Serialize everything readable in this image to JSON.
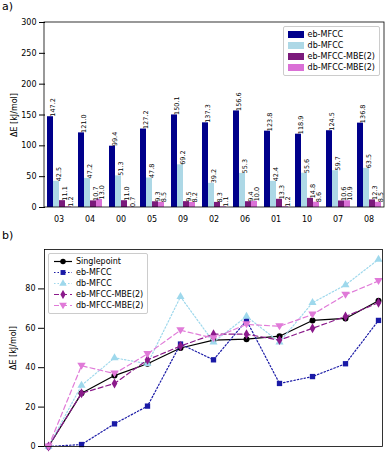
{
  "chart_data": [
    {
      "type": "bar",
      "title": "a)",
      "categories": [
        "03",
        "04",
        "00",
        "05",
        "09",
        "02",
        "06",
        "01",
        "10",
        "07",
        "08"
      ],
      "y_label": "ΔE [kJ/mol]",
      "ylim": [
        0,
        300
      ],
      "yticks": [
        0,
        50,
        100,
        150,
        200,
        250,
        300
      ],
      "data_labels": true,
      "legend": "top-right",
      "series": [
        {
          "name": "eb-MFCC",
          "color": "#00008b",
          "values": [
            147.2,
            121.0,
            99.4,
            127.2,
            150.1,
            137.3,
            156.6,
            123.8,
            118.9,
            124.5,
            136.8
          ],
          "value_labels": [
            "147.2",
            "121.0",
            "99.4",
            "127.2",
            "150.1",
            "137.3",
            "156.6",
            "123.8",
            "118.9",
            "124.5",
            "136.8"
          ]
        },
        {
          "name": "db-MFCC",
          "color": "#add8e6",
          "values": [
            42.5,
            47.2,
            51.3,
            47.8,
            69.2,
            39.2,
            55.3,
            42.4,
            55.6,
            59.7,
            63.5
          ],
          "value_labels": [
            "42.5",
            "47.2",
            "51.3",
            "47.8",
            "69.2",
            "39.2",
            "55.3",
            "42.4",
            "55.6",
            "59.7",
            "63.5"
          ]
        },
        {
          "name": "eb-MFCC-MBE(2)",
          "color": "#7b1a7b",
          "values": [
            11.1,
            10.7,
            11.0,
            9.3,
            9.5,
            8.3,
            9.4,
            13.3,
            14.8,
            10.6,
            12.3
          ],
          "value_labels": [
            "11.1",
            "10.7",
            "11.0",
            "9.3",
            "9.5",
            "8.3",
            "9.4",
            "13.3",
            "14.8",
            "10.6",
            "12.3"
          ]
        },
        {
          "name": "db-MFCC-MBE(2)",
          "color": "#da70d6",
          "values": [
            1.2,
            13.0,
            0.7,
            8.5,
            8.2,
            1.1,
            10.0,
            1.2,
            8.6,
            10.9,
            8.5
          ],
          "value_labels": [
            "1.2",
            "13.0",
            "0.7",
            "8.5",
            "8.2",
            "1.1",
            "10.0",
            "1.2",
            "8.6",
            "10.9",
            "8.5"
          ]
        }
      ]
    },
    {
      "type": "line",
      "title": "b)",
      "categories": [
        null,
        null,
        null,
        null,
        null,
        null,
        null,
        null,
        null,
        null,
        null
      ],
      "y_label": "ΔE [kJ/mol]",
      "ylim": [
        0,
        100
      ],
      "yticks": [
        0,
        20,
        40,
        60,
        80
      ],
      "tick_labels": "y",
      "legend": "top-left",
      "series": [
        {
          "name": "Singlepoint",
          "color": "#000000",
          "marker": "circle",
          "line_style": "solid",
          "values": [
            0,
            27,
            36,
            42,
            50,
            54,
            54.5,
            56,
            64,
            65,
            74
          ]
        },
        {
          "name": "eb-MFCC",
          "color": "#1a1aa6",
          "marker": "square",
          "line_style": "dotted",
          "values": [
            0,
            1,
            11.5,
            20.5,
            52,
            44,
            64,
            32,
            35.5,
            42,
            64
          ]
        },
        {
          "name": "db-MFCC",
          "color": "#9ed8ec",
          "marker": "triangle",
          "line_style": "dotted",
          "values": [
            0,
            31,
            45,
            42,
            76,
            53,
            66,
            53,
            73,
            82,
            95
          ]
        },
        {
          "name": "eb-MFCC-MBE(2)",
          "color": "#8b1a8b",
          "marker": "diamond",
          "line_style": "dashed",
          "values": [
            0,
            27,
            32,
            44,
            51,
            57,
            57,
            54,
            60,
            66,
            73
          ]
        },
        {
          "name": "db-MFCC-MBE(2)",
          "color": "#e07ad8",
          "marker": "triangle-down",
          "line_style": "dashed",
          "values": [
            0,
            41,
            37,
            47,
            59,
            55,
            62,
            61,
            67,
            77,
            84
          ]
        }
      ]
    }
  ]
}
